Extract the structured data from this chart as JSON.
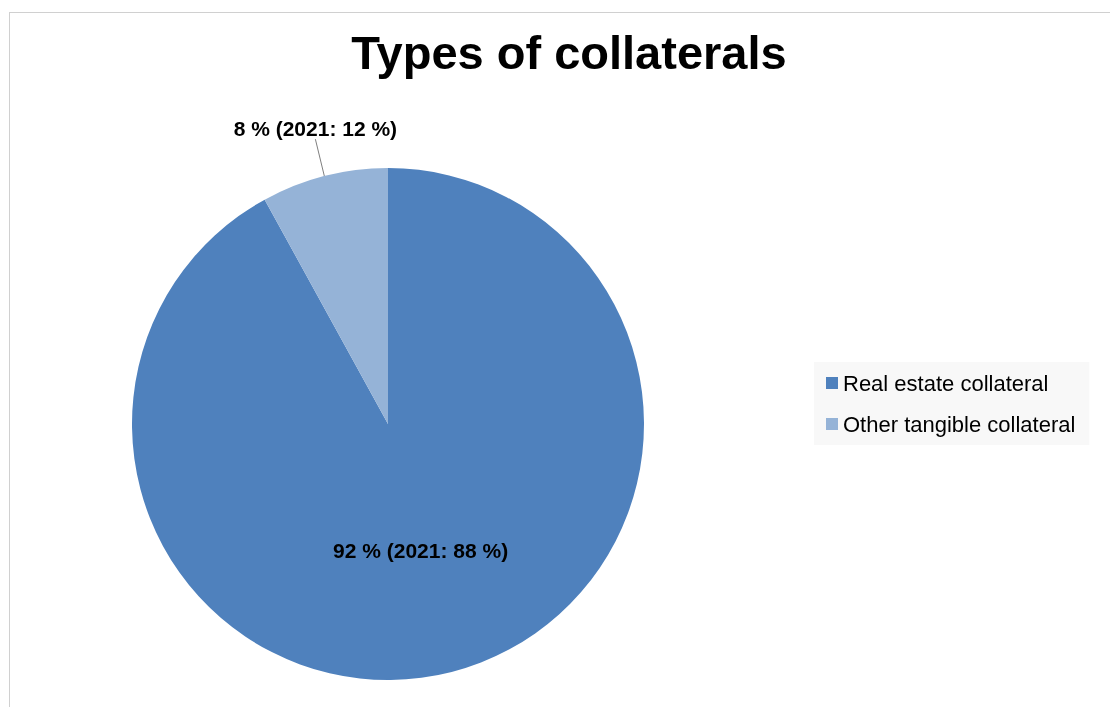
{
  "chart_data": {
    "type": "pie",
    "title": "Types of collaterals",
    "categories": [
      "Real estate collateral",
      "Other tangible collateral"
    ],
    "values": [
      92,
      8
    ],
    "colors": [
      "#4f81bd",
      "#95b3d7"
    ],
    "value_labels": [
      "92 % (2021: 88 %)",
      "8 % (2021: 12 %)"
    ],
    "legend": "right"
  }
}
